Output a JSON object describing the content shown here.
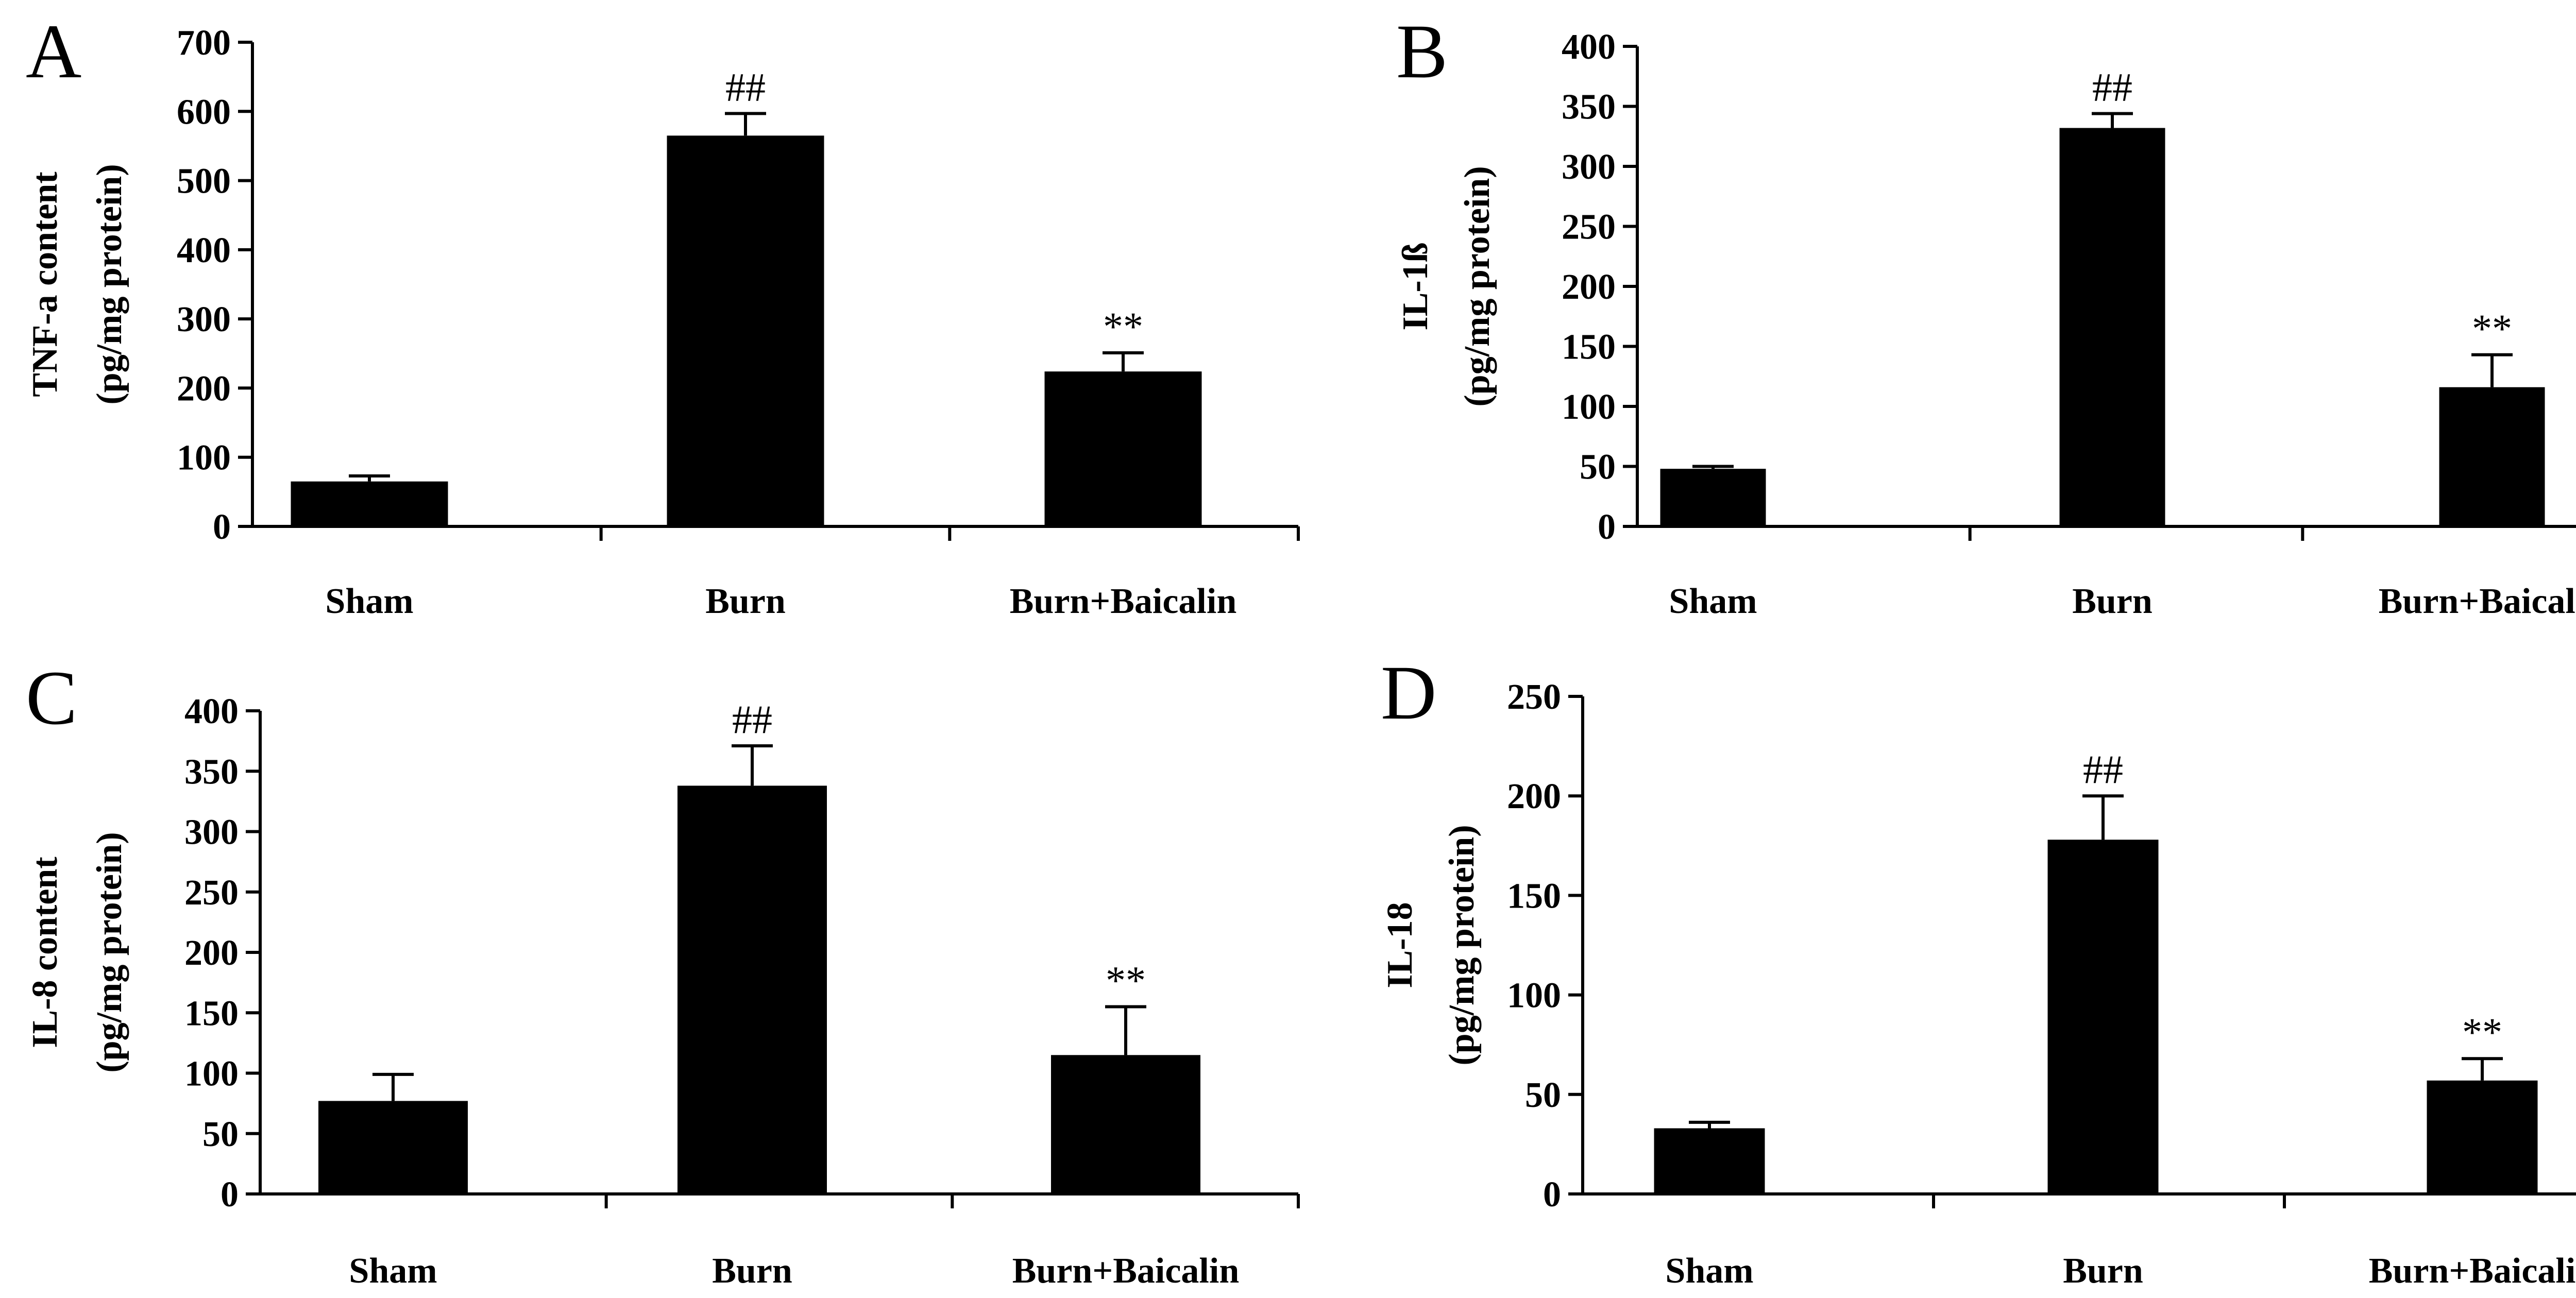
{
  "chart_data": [
    {
      "panel": "A",
      "type": "bar",
      "categories": [
        "Sham",
        "Burn",
        "Burn+Baicalin"
      ],
      "values": [
        65,
        565,
        224
      ],
      "errors": [
        8,
        32,
        27
      ],
      "annotations": [
        "",
        "##",
        "**"
      ],
      "ylabel_lines": [
        "TNF-a content",
        "(pg/mg protein)"
      ],
      "yticks": [
        0,
        100,
        200,
        300,
        400,
        500,
        600,
        700
      ],
      "ylim": [
        0,
        700
      ],
      "bar_color": "#000000"
    },
    {
      "panel": "B",
      "type": "bar",
      "categories": [
        "Sham",
        "Burn",
        "Burn+Baicalin"
      ],
      "values": [
        48,
        332,
        116
      ],
      "errors": [
        2,
        12,
        27
      ],
      "annotations": [
        "",
        "##",
        "**"
      ],
      "ylabel_lines": [
        "IL-1ß",
        "(pg/mg protein)"
      ],
      "yticks": [
        0,
        50,
        100,
        150,
        200,
        250,
        300,
        350,
        400
      ],
      "ylim": [
        0,
        400
      ],
      "bar_color": "#000000"
    },
    {
      "panel": "C",
      "type": "bar",
      "categories": [
        "Sham",
        "Burn",
        "Burn+Baicalin"
      ],
      "values": [
        77,
        338,
        115
      ],
      "errors": [
        22,
        33,
        40
      ],
      "annotations": [
        "",
        "##",
        "**"
      ],
      "ylabel_lines": [
        "IL-8 content",
        "(pg/mg protein)"
      ],
      "yticks": [
        0,
        50,
        100,
        150,
        200,
        250,
        300,
        350,
        400
      ],
      "ylim": [
        0,
        400
      ],
      "bar_color": "#000000"
    },
    {
      "panel": "D",
      "type": "bar",
      "categories": [
        "Sham",
        "Burn",
        "Burn+Baicalin"
      ],
      "values": [
        33,
        178,
        57
      ],
      "errors": [
        3,
        22,
        11
      ],
      "annotations": [
        "",
        "##",
        "**"
      ],
      "ylabel_lines": [
        "IL-18",
        "(pg/mg protein)"
      ],
      "yticks": [
        0,
        50,
        100,
        150,
        200,
        250
      ],
      "ylim": [
        0,
        250
      ],
      "bar_color": "#000000"
    }
  ]
}
